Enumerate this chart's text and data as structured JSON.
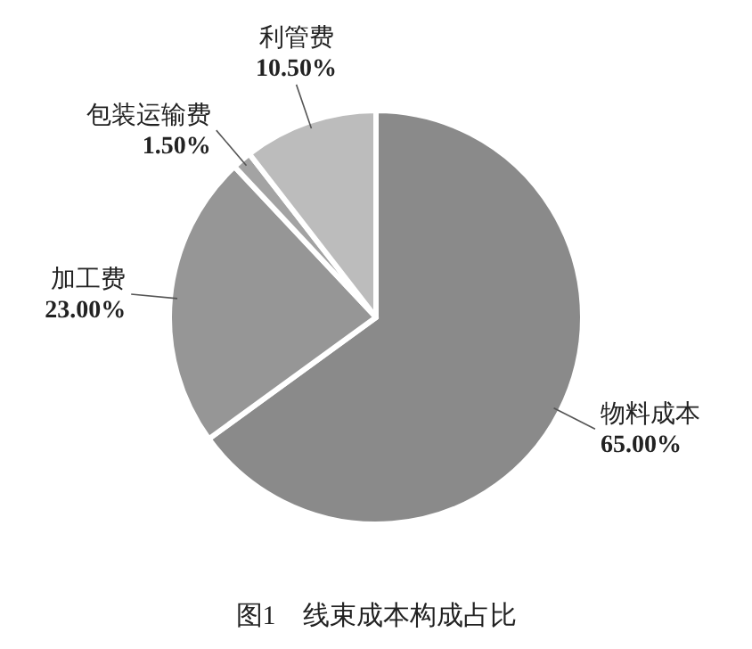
{
  "chart_data": {
    "type": "pie",
    "title": "图1　线束成本构成占比",
    "categories": [
      "物料成本",
      "加工费",
      "包装运输费",
      "利管费"
    ],
    "values": [
      65,
      23,
      1.5,
      10.5
    ],
    "value_labels": [
      "65.00%",
      "23.00%",
      "1.50%",
      "10.50%"
    ],
    "colors": [
      "#8a8a8a",
      "#969696",
      "#a3a3a3",
      "#bcbcbc"
    ]
  }
}
